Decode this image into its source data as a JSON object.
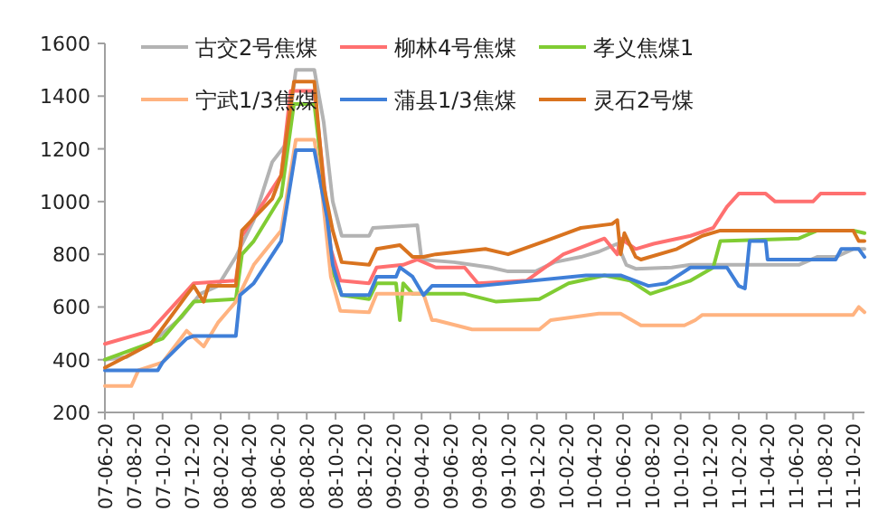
{
  "chart_data": {
    "type": "line",
    "legend": "top",
    "grid": false,
    "line_style": "solid",
    "xlim": [
      "2007-06-20",
      "2011-11-13"
    ],
    "ylim": [
      200,
      1600
    ],
    "yticks": [
      200,
      400,
      600,
      800,
      1000,
      1200,
      1400,
      1600
    ],
    "xticks": [
      {
        "value": "2007-06-20",
        "label": "07-06-20"
      },
      {
        "value": "2007-08-20",
        "label": "07-08-20"
      },
      {
        "value": "2007-10-20",
        "label": "07-10-20"
      },
      {
        "value": "2007-12-20",
        "label": "07-12-20"
      },
      {
        "value": "2008-02-20",
        "label": "08-02-20"
      },
      {
        "value": "2008-04-20",
        "label": "08-04-20"
      },
      {
        "value": "2008-06-20",
        "label": "08-06-20"
      },
      {
        "value": "2008-08-20",
        "label": "08-08-20"
      },
      {
        "value": "2008-10-20",
        "label": "08-10-20"
      },
      {
        "value": "2008-12-20",
        "label": "08-12-20"
      },
      {
        "value": "2009-02-20",
        "label": "09-02-20"
      },
      {
        "value": "2009-04-20",
        "label": "09-04-20"
      },
      {
        "value": "2009-06-20",
        "label": "09-06-20"
      },
      {
        "value": "2009-08-20",
        "label": "09-08-20"
      },
      {
        "value": "2009-10-20",
        "label": "09-10-20"
      },
      {
        "value": "2009-12-20",
        "label": "09-12-20"
      },
      {
        "value": "2010-02-20",
        "label": "10-02-20"
      },
      {
        "value": "2010-04-20",
        "label": "10-04-20"
      },
      {
        "value": "2010-06-20",
        "label": "10-06-20"
      },
      {
        "value": "2010-08-20",
        "label": "10-08-20"
      },
      {
        "value": "2010-10-20",
        "label": "10-10-20"
      },
      {
        "value": "2010-12-20",
        "label": "10-12-20"
      },
      {
        "value": "2011-02-20",
        "label": "11-02-20"
      },
      {
        "value": "2011-04-20",
        "label": "11-04-20"
      },
      {
        "value": "2011-06-20",
        "label": "11-06-20"
      },
      {
        "value": "2011-08-20",
        "label": "11-08-20"
      },
      {
        "value": "2011-10-20",
        "label": "11-10-20"
      }
    ],
    "series": [
      {
        "name": "古交2号焦煤",
        "color": "#b3b3b3",
        "x": [
          "2007-06-20",
          "2007-08-05",
          "2007-10-01",
          "2007-11-29",
          "2008-01-08",
          "2008-02-14",
          "2008-03-23",
          "2008-04-30",
          "2008-06-08",
          "2008-07-08",
          "2008-07-28",
          "2008-09-05",
          "2008-09-25",
          "2008-10-14",
          "2008-11-02",
          "2008-12-30",
          "2009-01-07",
          "2009-04-11",
          "2009-04-20",
          "2009-06-27",
          "2009-09-13",
          "2009-10-20",
          "2009-12-17",
          "2010-01-26",
          "2010-03-23",
          "2010-04-30",
          "2010-06-08",
          "2010-06-27",
          "2010-07-17",
          "2010-10-01",
          "2010-11-10",
          "2011-06-27",
          "2011-08-05",
          "2011-09-13",
          "2011-10-20",
          "2011-11-13"
        ],
        "values": [
          400,
          410,
          470,
          560,
          650,
          680,
          790,
          930,
          1150,
          1220,
          1500,
          1500,
          1300,
          1000,
          870,
          870,
          900,
          910,
          780,
          770,
          750,
          735,
          735,
          770,
          790,
          810,
          840,
          760,
          745,
          750,
          760,
          760,
          790,
          790,
          820,
          820
        ]
      },
      {
        "name": "柳林4号焦煤",
        "color": "#ff7070",
        "x": [
          "2007-06-20",
          "2007-09-25",
          "2007-12-10",
          "2007-12-25",
          "2008-03-23",
          "2008-04-05",
          "2008-04-30",
          "2008-06-27",
          "2008-07-17",
          "2008-09-05",
          "2008-09-20",
          "2008-10-10",
          "2008-10-30",
          "2008-12-30",
          "2009-01-15",
          "2009-03-12",
          "2009-04-11",
          "2009-05-20",
          "2009-07-20",
          "2009-08-17",
          "2009-11-28",
          "2010-02-14",
          "2010-05-12",
          "2010-06-08",
          "2010-06-15",
          "2010-07-17",
          "2010-08-24",
          "2010-11-10",
          "2010-12-28",
          "2011-01-26",
          "2011-02-20",
          "2011-04-18",
          "2011-05-08",
          "2011-07-27",
          "2011-08-12",
          "2011-11-13"
        ],
        "values": [
          460,
          510,
          660,
          690,
          700,
          870,
          940,
          1100,
          1420,
          1420,
          1170,
          820,
          700,
          690,
          750,
          760,
          780,
          750,
          750,
          690,
          700,
          800,
          860,
          800,
          860,
          820,
          840,
          870,
          900,
          980,
          1030,
          1030,
          1000,
          1000,
          1030,
          1030
        ]
      },
      {
        "name": "孝义焦煤1",
        "color": "#80cc33",
        "x": [
          "2007-06-20",
          "2007-10-20",
          "2007-12-25",
          "2008-03-23",
          "2008-04-05",
          "2008-04-30",
          "2008-06-27",
          "2008-07-24",
          "2008-09-05",
          "2008-09-25",
          "2008-10-14",
          "2008-11-02",
          "2008-12-30",
          "2009-01-15",
          "2009-02-25",
          "2009-03-05",
          "2009-03-12",
          "2009-04-01",
          "2009-05-20",
          "2009-07-20",
          "2009-09-25",
          "2009-12-25",
          "2010-02-25",
          "2010-05-12",
          "2010-07-05",
          "2010-08-17",
          "2010-11-10",
          "2010-12-28",
          "2011-01-12",
          "2011-06-27",
          "2011-08-05",
          "2011-10-20",
          "2011-11-13"
        ],
        "values": [
          400,
          480,
          620,
          630,
          800,
          850,
          1020,
          1370,
          1370,
          1060,
          735,
          645,
          630,
          690,
          690,
          550,
          690,
          650,
          650,
          650,
          620,
          630,
          690,
          720,
          700,
          650,
          700,
          750,
          850,
          860,
          890,
          890,
          880
        ]
      },
      {
        "name": "宁武1/3焦煤",
        "color": "#ffb380",
        "x": [
          "2007-06-20",
          "2007-08-15",
          "2007-08-30",
          "2007-10-20",
          "2007-12-10",
          "2008-01-15",
          "2008-02-14",
          "2008-03-23",
          "2008-04-30",
          "2008-06-27",
          "2008-07-28",
          "2008-09-05",
          "2008-09-20",
          "2008-10-10",
          "2008-10-30",
          "2008-12-30",
          "2009-01-15",
          "2009-04-24",
          "2009-05-12",
          "2009-05-20",
          "2009-08-05",
          "2009-12-25",
          "2010-01-18",
          "2010-04-30",
          "2010-06-15",
          "2010-07-28",
          "2010-10-28",
          "2010-11-20",
          "2010-12-05",
          "2011-10-20",
          "2011-11-01",
          "2011-11-13"
        ],
        "values": [
          300,
          300,
          360,
          390,
          510,
          450,
          540,
          620,
          760,
          890,
          1235,
          1235,
          1060,
          715,
          585,
          580,
          650,
          650,
          550,
          550,
          515,
          515,
          550,
          575,
          575,
          530,
          530,
          550,
          570,
          570,
          600,
          580
        ]
      },
      {
        "name": "蒲县1/3焦煤",
        "color": "#3f7fd8",
        "x": [
          "2007-06-20",
          "2007-10-10",
          "2007-10-20",
          "2007-12-10",
          "2007-12-25",
          "2008-03-23",
          "2008-04-01",
          "2008-04-30",
          "2008-06-27",
          "2008-07-28",
          "2008-09-05",
          "2008-10-02",
          "2008-10-14",
          "2008-11-02",
          "2008-12-30",
          "2009-01-15",
          "2009-02-25",
          "2009-03-05",
          "2009-04-01",
          "2009-04-24",
          "2009-05-12",
          "2009-08-05",
          "2009-08-20",
          "2010-04-03",
          "2010-06-15",
          "2010-08-13",
          "2010-09-20",
          "2010-11-10",
          "2011-01-26",
          "2011-02-20",
          "2011-03-05",
          "2011-03-15",
          "2011-04-18",
          "2011-04-22",
          "2011-09-13",
          "2011-09-25",
          "2011-11-01",
          "2011-11-13"
        ],
        "values": [
          360,
          360,
          390,
          480,
          490,
          490,
          645,
          690,
          850,
          1195,
          1195,
          940,
          760,
          645,
          645,
          715,
          715,
          750,
          715,
          645,
          680,
          680,
          680,
          720,
          720,
          680,
          690,
          750,
          750,
          680,
          670,
          850,
          850,
          780,
          780,
          820,
          820,
          790
        ]
      },
      {
        "name": "灵石2号煤",
        "color": "#d9731f",
        "x": [
          "2007-06-20",
          "2007-09-25",
          "2007-12-10",
          "2007-12-25",
          "2008-01-15",
          "2008-01-25",
          "2008-03-23",
          "2008-04-05",
          "2008-06-08",
          "2008-06-27",
          "2008-07-24",
          "2008-09-05",
          "2008-09-25",
          "2008-10-14",
          "2008-11-02",
          "2008-12-30",
          "2009-01-15",
          "2009-03-05",
          "2009-04-01",
          "2009-04-24",
          "2009-05-20",
          "2009-09-02",
          "2009-10-20",
          "2010-01-06",
          "2010-03-23",
          "2010-05-28",
          "2010-06-08",
          "2010-06-15",
          "2010-06-23",
          "2010-07-17",
          "2010-07-28",
          "2010-10-12",
          "2010-12-05",
          "2011-01-12",
          "2011-10-20",
          "2011-11-01",
          "2011-11-13"
        ],
        "values": [
          370,
          460,
          645,
          680,
          620,
          680,
          680,
          890,
          1010,
          1100,
          1455,
          1455,
          1060,
          890,
          770,
          760,
          820,
          835,
          790,
          790,
          800,
          820,
          800,
          850,
          900,
          915,
          930,
          800,
          880,
          790,
          780,
          820,
          870,
          890,
          890,
          850,
          850
        ]
      }
    ]
  }
}
